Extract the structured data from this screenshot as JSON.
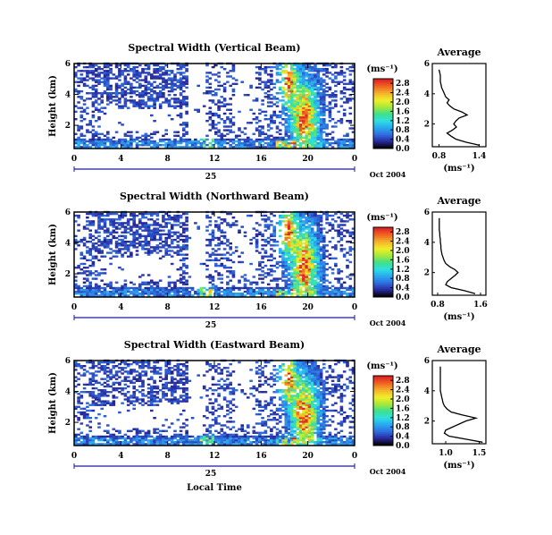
{
  "figure": {
    "bottom_xlabel": "Local Time",
    "day_label": "25",
    "date_label": "Oct 2004",
    "ylabel": "Height (km)",
    "colorbar_unit": "(ms⁻¹)",
    "average_title": "Average",
    "average_unit": "(ms⁻¹)"
  },
  "chart_data": [
    {
      "type": "heatmap",
      "title": "Spectral Width (Vertical Beam)",
      "xlabel": "Local Time",
      "ylabel": "Height (km)",
      "x_ticks": [
        "0",
        "4",
        "8",
        "12",
        "16",
        "20",
        "0"
      ],
      "y_ticks": [
        "2",
        "4",
        "6"
      ],
      "xlim": [
        0,
        24
      ],
      "ylim": [
        0.5,
        6
      ],
      "colorbar": {
        "ticks": [
          "0.0",
          "0.4",
          "0.8",
          "1.2",
          "1.6",
          "2.0",
          "2.4",
          "2.8"
        ],
        "range": [
          0,
          3.0
        ],
        "colors": [
          "#000000",
          "#2a2aa0",
          "#2f6fe0",
          "#29a9f0",
          "#2fe0e0",
          "#3ee08a",
          "#a6e83a",
          "#f0f02a",
          "#f5b52a",
          "#f06a22",
          "#e02424"
        ]
      },
      "average_profile": {
        "xticks": [
          "0.8",
          "1.4"
        ],
        "xlim": [
          0.7,
          1.5
        ],
        "yticks": [
          "2",
          "4",
          "6"
        ],
        "ylim": [
          0.5,
          6
        ],
        "height": [
          0.6,
          0.8,
          1.0,
          1.2,
          1.4,
          1.6,
          1.8,
          2.0,
          2.2,
          2.4,
          2.6,
          2.8,
          3.0,
          3.2,
          3.4,
          3.6,
          3.8,
          4.0,
          4.2,
          4.4,
          4.6,
          4.8,
          5.0,
          5.2,
          5.4,
          5.6
        ],
        "width": [
          1.4,
          1.2,
          1.05,
          0.98,
          0.92,
          1.0,
          1.06,
          1.02,
          1.05,
          1.1,
          1.22,
          1.14,
          1.02,
          0.96,
          0.92,
          0.95,
          0.9,
          0.88,
          0.86,
          0.84,
          0.83,
          0.82,
          0.82,
          0.82,
          0.81,
          0.8
        ]
      }
    },
    {
      "type": "heatmap",
      "title": "Spectral Width (Northward Beam)",
      "xlabel": "Local Time",
      "ylabel": "Height (km)",
      "x_ticks": [
        "0",
        "4",
        "8",
        "12",
        "16",
        "20",
        "0"
      ],
      "y_ticks": [
        "2",
        "4",
        "6"
      ],
      "xlim": [
        0,
        24
      ],
      "ylim": [
        0.5,
        6
      ],
      "colorbar": {
        "ticks": [
          "0.0",
          "0.4",
          "0.8",
          "1.2",
          "1.6",
          "2.0",
          "2.4",
          "2.8"
        ],
        "range": [
          0,
          3.0
        ],
        "colors": [
          "#000000",
          "#2a2aa0",
          "#2f6fe0",
          "#29a9f0",
          "#2fe0e0",
          "#3ee08a",
          "#a6e83a",
          "#f0f02a",
          "#f5b52a",
          "#f06a22",
          "#e02424"
        ]
      },
      "average_profile": {
        "xticks": [
          "0.8",
          "1.6"
        ],
        "xlim": [
          0.7,
          1.7
        ],
        "yticks": [
          "2",
          "4",
          "6"
        ],
        "ylim": [
          0.5,
          6
        ],
        "height": [
          0.6,
          0.8,
          1.0,
          1.2,
          1.4,
          1.6,
          1.8,
          2.0,
          2.2,
          2.4,
          2.6,
          2.8,
          3.0,
          3.2,
          3.4,
          3.6,
          3.8,
          4.0,
          4.2,
          4.4,
          4.6,
          4.8,
          5.0,
          5.2,
          5.4,
          5.6
        ],
        "width": [
          1.5,
          1.3,
          1.05,
          0.95,
          0.98,
          1.05,
          1.12,
          1.18,
          1.12,
          1.02,
          0.95,
          0.92,
          0.9,
          0.88,
          0.87,
          0.86,
          0.86,
          0.85,
          0.85,
          0.84,
          0.84,
          0.83,
          0.83,
          0.83,
          0.83,
          0.83
        ]
      }
    },
    {
      "type": "heatmap",
      "title": "Spectral Width (Eastward Beam)",
      "xlabel": "Local Time",
      "ylabel": "Height (km)",
      "x_ticks": [
        "0",
        "4",
        "8",
        "12",
        "16",
        "20",
        "0"
      ],
      "y_ticks": [
        "2",
        "4",
        "6"
      ],
      "xlim": [
        0,
        24
      ],
      "ylim": [
        0.5,
        6
      ],
      "colorbar": {
        "ticks": [
          "0.0",
          "0.4",
          "0.8",
          "1.2",
          "1.6",
          "2.0",
          "2.4",
          "2.8"
        ],
        "range": [
          0,
          3.0
        ],
        "colors": [
          "#000000",
          "#2a2aa0",
          "#2f6fe0",
          "#29a9f0",
          "#2fe0e0",
          "#3ee08a",
          "#a6e83a",
          "#f0f02a",
          "#f5b52a",
          "#f06a22",
          "#e02424"
        ]
      },
      "average_profile": {
        "xticks": [
          "1.0",
          "1.5"
        ],
        "xlim": [
          0.8,
          1.6
        ],
        "yticks": [
          "2",
          "4",
          "6"
        ],
        "ylim": [
          0.5,
          6
        ],
        "height": [
          0.6,
          0.8,
          1.0,
          1.2,
          1.4,
          1.6,
          1.8,
          2.0,
          2.2,
          2.4,
          2.6,
          2.8,
          3.0,
          3.2,
          3.4,
          3.6,
          3.8,
          4.0,
          4.2,
          4.4,
          4.6,
          4.8,
          5.0,
          5.2,
          5.4,
          5.6
        ],
        "width": [
          1.55,
          1.3,
          1.05,
          0.98,
          1.0,
          1.1,
          1.2,
          1.3,
          1.45,
          1.25,
          1.08,
          1.02,
          0.98,
          0.96,
          0.95,
          0.94,
          0.93,
          0.92,
          0.92,
          0.92,
          0.92,
          0.92,
          0.92,
          0.92,
          0.92,
          0.92
        ]
      }
    }
  ]
}
